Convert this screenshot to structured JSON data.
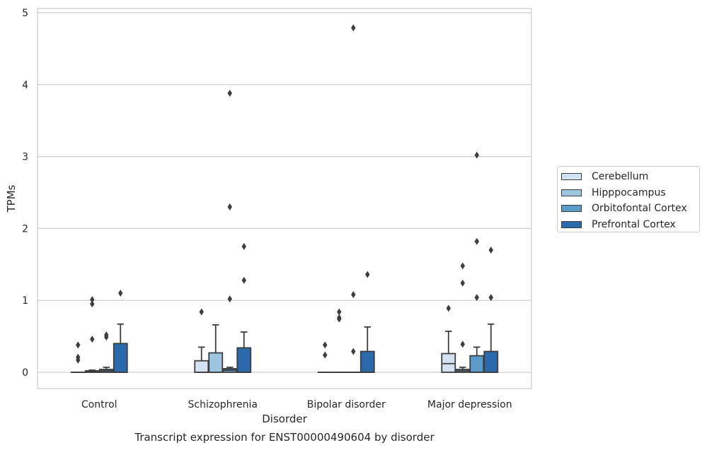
{
  "chart_data": {
    "type": "box",
    "title": "Transcript expression for ENST00000490604 by disorder",
    "xlabel": "Disorder",
    "ylabel": "TPMs",
    "categories": [
      "Control",
      "Schizophrenia",
      "Bipolar disorder",
      "Major depression"
    ],
    "ylim": [
      -0.23,
      5.05
    ],
    "yticks": [
      0,
      1,
      2,
      3,
      4,
      5
    ],
    "grid": true,
    "legend_position": "right",
    "series": [
      {
        "name": "Cerebellum",
        "color": "#d4e3f3",
        "boxes": [
          {
            "q1": 0.0,
            "median": 0.0,
            "q3": 0.0,
            "whisker_low": 0.0,
            "whisker_high": 0.0,
            "outliers": [
              0.38,
              0.21,
              0.17
            ]
          },
          {
            "q1": 0.0,
            "median": 0.0,
            "q3": 0.16,
            "whisker_low": 0.0,
            "whisker_high": 0.35,
            "outliers": [
              0.84
            ]
          },
          {
            "q1": 0.0,
            "median": 0.0,
            "q3": 0.0,
            "whisker_low": 0.0,
            "whisker_high": 0.0,
            "outliers": [
              0.38,
              0.24
            ]
          },
          {
            "q1": 0.0,
            "median": 0.12,
            "q3": 0.26,
            "whisker_low": 0.0,
            "whisker_high": 0.57,
            "outliers": [
              0.89
            ]
          }
        ]
      },
      {
        "name": "Hipppocampus",
        "color": "#9ec5e0",
        "boxes": [
          {
            "q1": 0.0,
            "median": 0.01,
            "q3": 0.02,
            "whisker_low": 0.0,
            "whisker_high": 0.03,
            "outliers": [
              1.01,
              0.95,
              0.46
            ]
          },
          {
            "q1": 0.0,
            "median": 0.0,
            "q3": 0.27,
            "whisker_low": 0.0,
            "whisker_high": 0.66,
            "outliers": []
          },
          {
            "q1": 0.0,
            "median": 0.0,
            "q3": 0.0,
            "whisker_low": 0.0,
            "whisker_high": 0.0,
            "outliers": [
              0.84,
              0.76,
              0.74
            ]
          },
          {
            "q1": 0.0,
            "median": 0.02,
            "q3": 0.04,
            "whisker_low": 0.0,
            "whisker_high": 0.07,
            "outliers": [
              1.48,
              1.24,
              0.39
            ]
          }
        ]
      },
      {
        "name": "Orbitofontal Cortex",
        "color": "#5b9bc9",
        "boxes": [
          {
            "q1": 0.0,
            "median": 0.02,
            "q3": 0.04,
            "whisker_low": 0.0,
            "whisker_high": 0.07,
            "outliers": [
              0.52,
              0.49
            ]
          },
          {
            "q1": 0.0,
            "median": 0.03,
            "q3": 0.05,
            "whisker_low": 0.0,
            "whisker_high": 0.07,
            "outliers": [
              3.88,
              2.3,
              1.02
            ]
          },
          {
            "q1": 0.0,
            "median": 0.0,
            "q3": 0.0,
            "whisker_low": 0.0,
            "whisker_high": 0.0,
            "outliers": [
              4.79,
              1.08,
              0.29
            ]
          },
          {
            "q1": 0.0,
            "median": 0.0,
            "q3": 0.23,
            "whisker_low": 0.0,
            "whisker_high": 0.35,
            "outliers": [
              3.02,
              1.82,
              1.04
            ]
          }
        ]
      },
      {
        "name": "Prefrontal Cortex",
        "color": "#2a6aac",
        "boxes": [
          {
            "q1": 0.0,
            "median": 0.0,
            "q3": 0.4,
            "whisker_low": 0.0,
            "whisker_high": 0.67,
            "outliers": [
              1.1
            ]
          },
          {
            "q1": 0.0,
            "median": 0.0,
            "q3": 0.34,
            "whisker_low": 0.0,
            "whisker_high": 0.56,
            "outliers": [
              1.75,
              1.28
            ]
          },
          {
            "q1": 0.0,
            "median": 0.0,
            "q3": 0.29,
            "whisker_low": 0.0,
            "whisker_high": 0.63,
            "outliers": [
              1.36
            ]
          },
          {
            "q1": 0.0,
            "median": 0.0,
            "q3": 0.29,
            "whisker_low": 0.0,
            "whisker_high": 0.67,
            "outliers": [
              1.7,
              1.04
            ]
          }
        ]
      }
    ]
  }
}
